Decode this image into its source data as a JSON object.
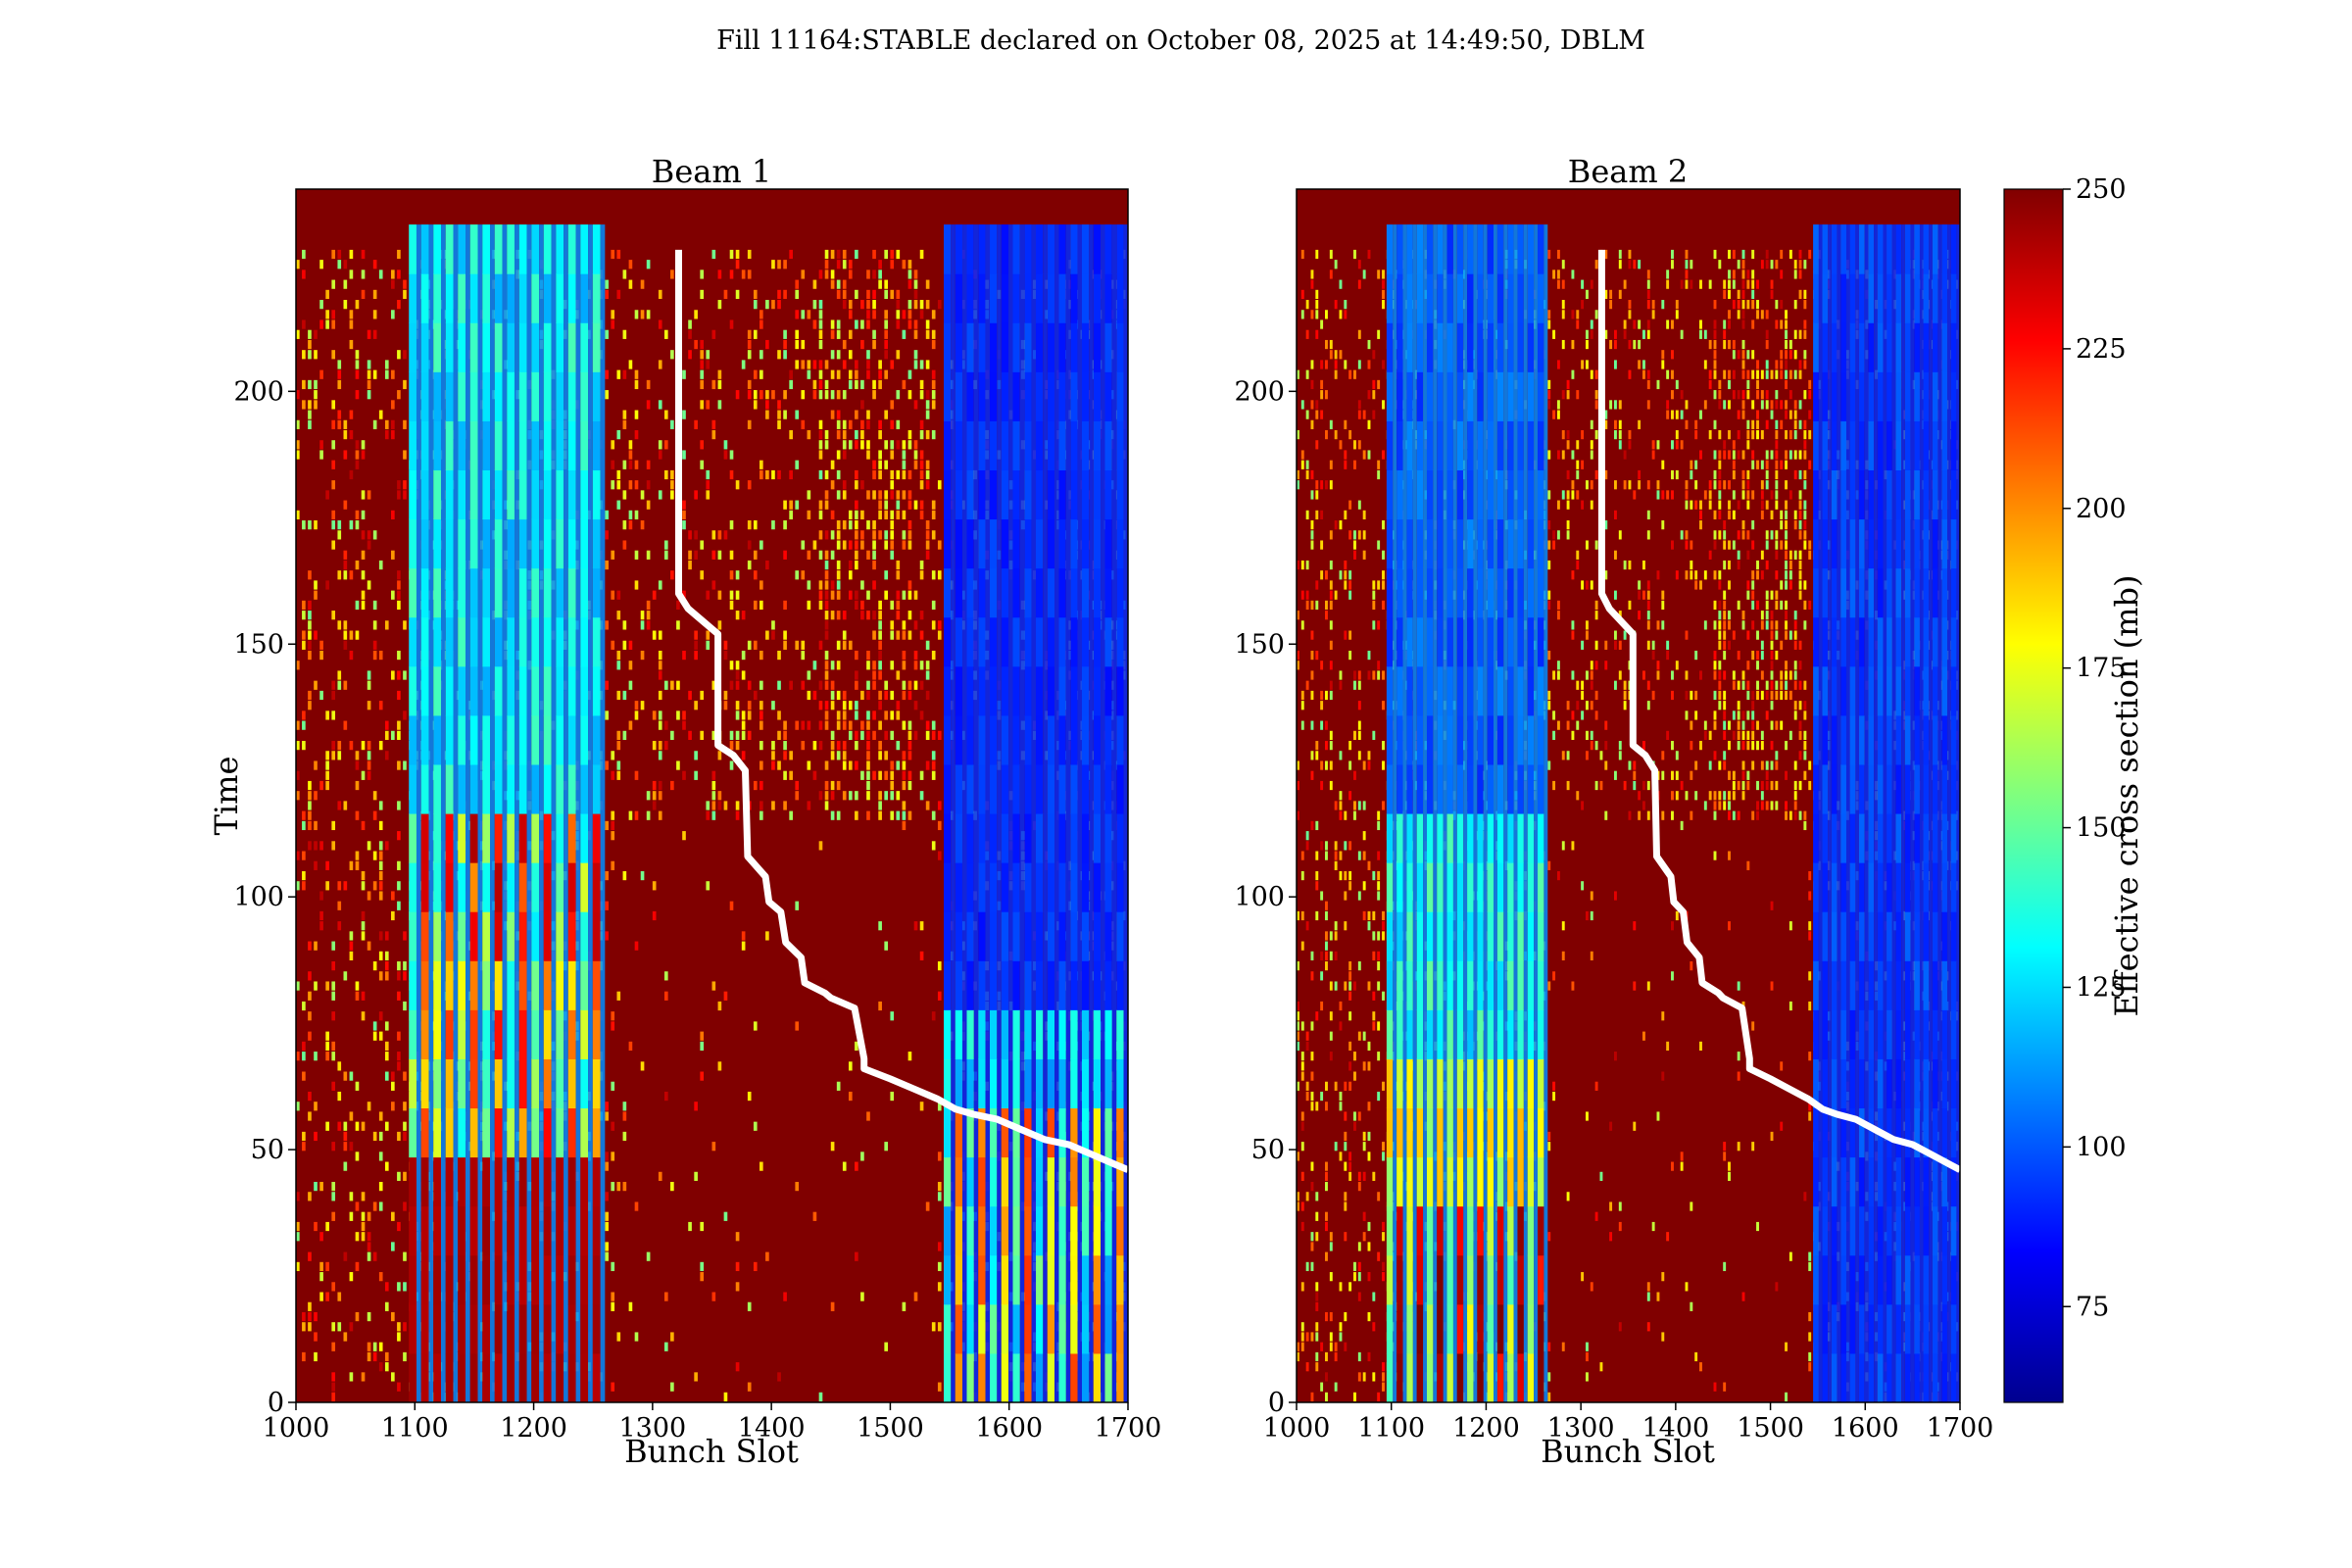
{
  "figure": {
    "suptitle": "Fill 11164:STABLE declared on October 08, 2025 at 14:49:50, DBLM"
  },
  "colors": {
    "background_high": "#800000",
    "low_band": "#0000f0",
    "overlay_line": "#ffffff",
    "colormap": [
      "#00008f",
      "#0000ff",
      "#007fff",
      "#00ffff",
      "#7fff7f",
      "#ffff00",
      "#ff7f00",
      "#ff0000",
      "#800000"
    ]
  },
  "colorbar": {
    "label": "Effective cross section (mb)",
    "min": 60,
    "max": 250,
    "ticks": [
      "250",
      "225",
      "200",
      "175",
      "150",
      "125",
      "100",
      "75"
    ],
    "tick_values": [
      250,
      225,
      200,
      175,
      150,
      125,
      100,
      75
    ]
  },
  "chart_data": [
    {
      "type": "heatmap",
      "title": "Beam 1",
      "xlabel": "Bunch Slot",
      "ylabel": "Time",
      "xlim": [
        1000,
        1700
      ],
      "ylim": [
        0,
        240
      ],
      "xticks": [
        "1000",
        "1100",
        "1200",
        "1300",
        "1400",
        "1500",
        "1600",
        "1700"
      ],
      "xtick_values": [
        1000,
        1100,
        1200,
        1300,
        1400,
        1500,
        1600,
        1700
      ],
      "yticks": [
        "0",
        "50",
        "100",
        "150",
        "200"
      ],
      "ytick_values": [
        0,
        50,
        100,
        150,
        200
      ],
      "color_scale": "Effective cross section (mb), 60–250",
      "bands": [
        {
          "x_start": 1095,
          "x_end": 1260,
          "time_end": 233,
          "profile": "beam1_left"
        },
        {
          "x_start": 1545,
          "x_end": 1700,
          "time_end": 233,
          "profile": "beam1_right"
        }
      ],
      "overlay_line": {
        "x": [
          1322,
          1322,
          1330,
          1345,
          1355,
          1355,
          1368,
          1378,
          1380,
          1395,
          1398,
          1408,
          1412,
          1425,
          1428,
          1445,
          1450,
          1470,
          1478,
          1478,
          1500,
          1520,
          1540,
          1555,
          1570,
          1590,
          1610,
          1630,
          1650,
          1670,
          1690,
          1700
        ],
        "y": [
          228,
          160,
          157,
          154,
          152,
          130,
          128,
          125,
          108,
          104,
          99,
          97,
          91,
          88,
          83,
          81,
          80,
          78,
          68,
          66,
          64,
          62,
          60,
          58,
          57,
          56,
          54,
          52,
          51,
          49,
          47,
          46
        ]
      }
    },
    {
      "type": "heatmap",
      "title": "Beam 2",
      "xlabel": "Bunch Slot",
      "ylabel": "",
      "xlim": [
        1000,
        1700
      ],
      "ylim": [
        0,
        240
      ],
      "xticks": [
        "1000",
        "1100",
        "1200",
        "1300",
        "1400",
        "1500",
        "1600",
        "1700"
      ],
      "xtick_values": [
        1000,
        1100,
        1200,
        1300,
        1400,
        1500,
        1600,
        1700
      ],
      "yticks": [
        "0",
        "50",
        "100",
        "150",
        "200"
      ],
      "ytick_values": [
        0,
        50,
        100,
        150,
        200
      ],
      "color_scale": "Effective cross section (mb), 60–250",
      "bands": [
        {
          "x_start": 1095,
          "x_end": 1265,
          "time_end": 233,
          "profile": "beam2_left"
        },
        {
          "x_start": 1545,
          "x_end": 1700,
          "time_end": 233,
          "profile": "beam2_right"
        }
      ],
      "overlay_line": {
        "x": [
          1322,
          1322,
          1330,
          1345,
          1355,
          1355,
          1368,
          1378,
          1380,
          1395,
          1398,
          1408,
          1412,
          1425,
          1428,
          1445,
          1450,
          1470,
          1478,
          1478,
          1500,
          1520,
          1540,
          1555,
          1570,
          1590,
          1610,
          1630,
          1650,
          1670,
          1690,
          1700
        ],
        "y": [
          228,
          160,
          157,
          154,
          152,
          130,
          128,
          125,
          108,
          104,
          99,
          97,
          91,
          88,
          83,
          81,
          80,
          78,
          68,
          66,
          64,
          62,
          60,
          58,
          57,
          56,
          54,
          52,
          51,
          49,
          47,
          46
        ]
      }
    }
  ]
}
